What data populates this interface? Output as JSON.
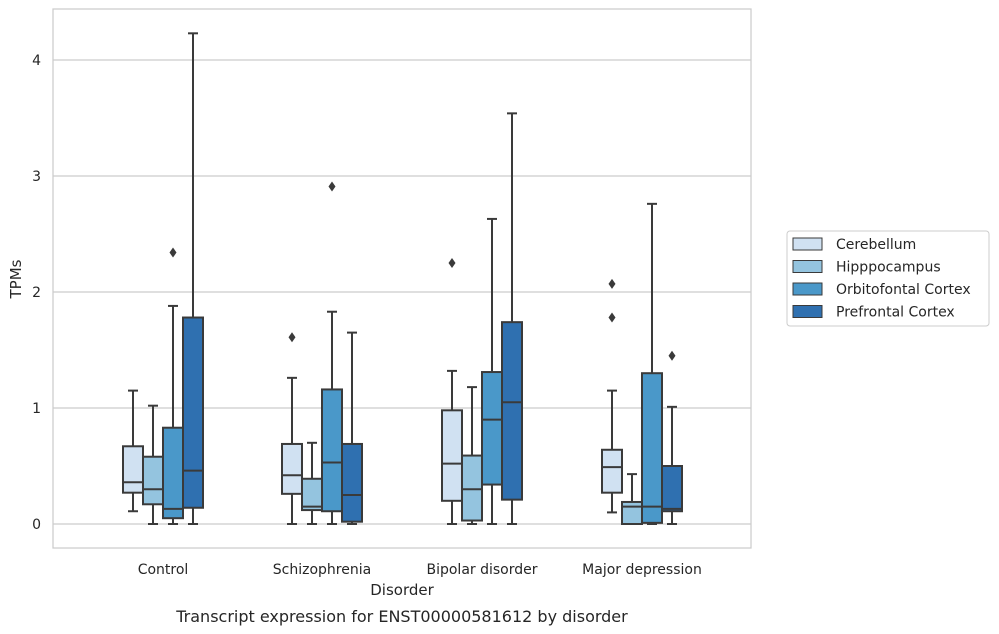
{
  "chart_data": {
    "type": "box",
    "caption": "Transcript expression for ENST00000581612 by disorder",
    "xlabel": "Disorder",
    "ylabel": "TPMs",
    "ylim": [
      -0.2,
      4.45
    ],
    "yticks": [
      0,
      1,
      2,
      3,
      4
    ],
    "grid": "horizontal",
    "legend_position": "right",
    "categories": [
      "Control",
      "Schizophrenia",
      "Bipolar disorder",
      "Major depression"
    ],
    "series": [
      {
        "name": "Cerebellum",
        "color": "#d0e1f2",
        "boxes": [
          {
            "whisker_low": 0.11,
            "q1": 0.27,
            "median": 0.36,
            "q3": 0.67,
            "whisker_high": 1.15,
            "outliers": []
          },
          {
            "whisker_low": 0.0,
            "q1": 0.26,
            "median": 0.42,
            "q3": 0.69,
            "whisker_high": 1.26,
            "outliers": [
              1.61
            ]
          },
          {
            "whisker_low": 0.0,
            "q1": 0.2,
            "median": 0.52,
            "q3": 0.98,
            "whisker_high": 1.32,
            "outliers": [
              2.25
            ]
          },
          {
            "whisker_low": 0.1,
            "q1": 0.27,
            "median": 0.49,
            "q3": 0.64,
            "whisker_high": 1.15,
            "outliers": [
              1.78,
              2.07
            ]
          }
        ]
      },
      {
        "name": "Hipppocampus",
        "color": "#94c4df",
        "boxes": [
          {
            "whisker_low": 0.0,
            "q1": 0.17,
            "median": 0.3,
            "q3": 0.58,
            "whisker_high": 1.02,
            "outliers": []
          },
          {
            "whisker_low": 0.0,
            "q1": 0.12,
            "median": 0.15,
            "q3": 0.39,
            "whisker_high": 0.7,
            "outliers": []
          },
          {
            "whisker_low": 0.0,
            "q1": 0.03,
            "median": 0.3,
            "q3": 0.59,
            "whisker_high": 1.18,
            "outliers": []
          },
          {
            "whisker_low": 0.0,
            "q1": 0.0,
            "median": 0.15,
            "q3": 0.19,
            "whisker_high": 0.43,
            "outliers": []
          }
        ]
      },
      {
        "name": "Orbitofontal Cortex",
        "color": "#4a98c9",
        "boxes": [
          {
            "whisker_low": 0.0,
            "q1": 0.05,
            "median": 0.13,
            "q3": 0.83,
            "whisker_high": 1.88,
            "outliers": [
              2.34
            ]
          },
          {
            "whisker_low": 0.0,
            "q1": 0.11,
            "median": 0.53,
            "q3": 1.16,
            "whisker_high": 1.83,
            "outliers": [
              2.91
            ]
          },
          {
            "whisker_low": 0.0,
            "q1": 0.34,
            "median": 0.9,
            "q3": 1.31,
            "whisker_high": 2.63,
            "outliers": []
          },
          {
            "whisker_low": 0.0,
            "q1": 0.01,
            "median": 0.15,
            "q3": 1.3,
            "whisker_high": 2.76,
            "outliers": []
          }
        ]
      },
      {
        "name": "Prefrontal Cortex",
        "color": "#2f70b0",
        "boxes": [
          {
            "whisker_low": 0.0,
            "q1": 0.14,
            "median": 0.46,
            "q3": 1.78,
            "whisker_high": 4.23,
            "outliers": []
          },
          {
            "whisker_low": 0.0,
            "q1": 0.02,
            "median": 0.25,
            "q3": 0.69,
            "whisker_high": 1.65,
            "outliers": []
          },
          {
            "whisker_low": 0.0,
            "q1": 0.21,
            "median": 1.05,
            "q3": 1.74,
            "whisker_high": 3.54,
            "outliers": []
          },
          {
            "whisker_low": 0.0,
            "q1": 0.11,
            "median": 0.13,
            "q3": 0.5,
            "whisker_high": 1.01,
            "outliers": [
              1.45
            ]
          }
        ]
      }
    ]
  }
}
